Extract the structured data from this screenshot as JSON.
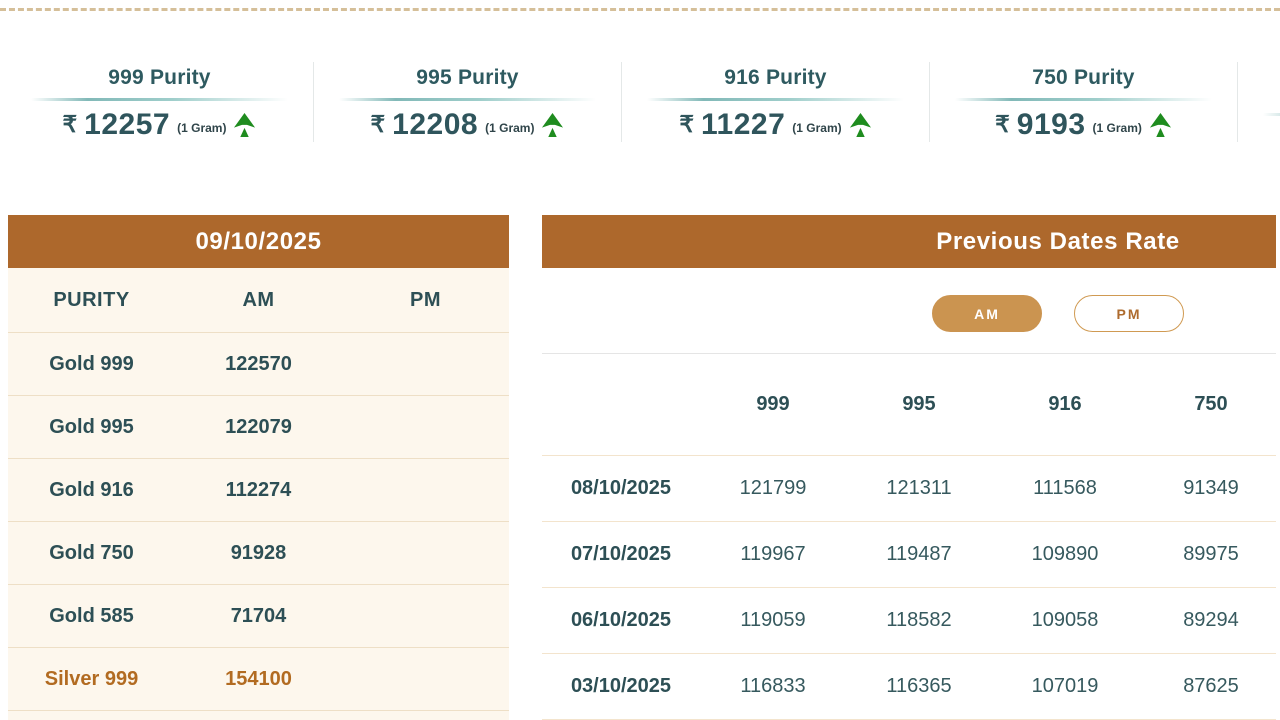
{
  "colors": {
    "header_brown": "#ad682c",
    "cream_bg": "#fdf7ed",
    "dark_teal_text": "#2d4f55",
    "silver_highlight": "#b26b21",
    "am_button_fill": "#cb9450",
    "pm_button_text": "#ae6b2e",
    "trend_up_green": "#1f8c1f",
    "teal_divider": "#82b9b8",
    "dashed_border": "#d5bf99"
  },
  "rate_cards": [
    {
      "purity_label": "999 Purity",
      "currency": "₹",
      "price": "12257",
      "unit": "(1 Gram)",
      "trend": "up",
      "trend_icon": "up-arrow-icon"
    },
    {
      "purity_label": "995 Purity",
      "currency": "₹",
      "price": "12208",
      "unit": "(1 Gram)",
      "trend": "up",
      "trend_icon": "up-arrow-icon"
    },
    {
      "purity_label": "916 Purity",
      "currency": "₹",
      "price": "11227",
      "unit": "(1 Gram)",
      "trend": "up",
      "trend_icon": "up-arrow-icon"
    },
    {
      "purity_label": "750 Purity",
      "currency": "₹",
      "price": "9193",
      "unit": "(1 Gram)",
      "trend": "up",
      "trend_icon": "up-arrow-icon"
    }
  ],
  "today_table": {
    "date_title": "09/10/2025",
    "columns": [
      "PURITY",
      "AM",
      "PM"
    ],
    "rows": [
      {
        "purity": "Gold 999",
        "am": "122570",
        "pm": "",
        "highlight": false
      },
      {
        "purity": "Gold 995",
        "am": "122079",
        "pm": "",
        "highlight": false
      },
      {
        "purity": "Gold 916",
        "am": "112274",
        "pm": "",
        "highlight": false
      },
      {
        "purity": "Gold 750",
        "am": "91928",
        "pm": "",
        "highlight": false
      },
      {
        "purity": "Gold 585",
        "am": "71704",
        "pm": "",
        "highlight": false
      },
      {
        "purity": "Silver 999",
        "am": "154100",
        "pm": "",
        "highlight": true
      }
    ]
  },
  "previous_rates": {
    "title": "Previous Dates Rate",
    "am_button": "AM",
    "pm_button": "PM",
    "active_tab": "AM",
    "columns": [
      "999",
      "995",
      "916",
      "750"
    ],
    "rows": [
      {
        "date": "08/10/2025",
        "values": [
          "121799",
          "121311",
          "111568",
          "91349"
        ]
      },
      {
        "date": "07/10/2025",
        "values": [
          "119967",
          "119487",
          "109890",
          "89975"
        ]
      },
      {
        "date": "06/10/2025",
        "values": [
          "119059",
          "118582",
          "109058",
          "89294"
        ]
      },
      {
        "date": "03/10/2025",
        "values": [
          "116833",
          "116365",
          "107019",
          "87625"
        ]
      }
    ]
  }
}
